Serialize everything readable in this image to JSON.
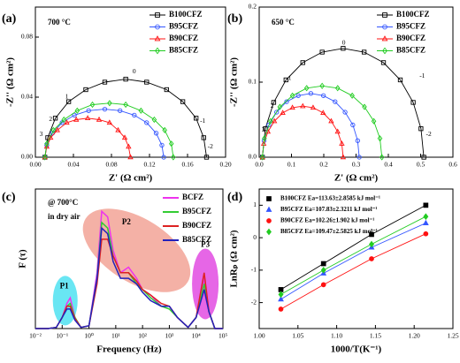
{
  "chart_data": [
    {
      "type": "scatter",
      "panel_label": "(a)",
      "xlabel": "Z' (Ω cm²)",
      "ylabel": "-Z'' (Ω cm²)",
      "marker_fill": "open",
      "connect": true,
      "xlim": [
        0,
        0.2
      ],
      "ylim": [
        0,
        0.1
      ],
      "xticks": [
        {
          "value": 0,
          "label": "0.00"
        },
        {
          "value": 0.04,
          "label": "0.04"
        },
        {
          "value": 0.08,
          "label": "0.08"
        },
        {
          "value": 0.12,
          "label": "0.12"
        },
        {
          "value": 0.16,
          "label": "0.16"
        },
        {
          "value": 0.2,
          "label": "0.20"
        }
      ],
      "yticks": [
        {
          "value": 0,
          "label": "0.00"
        },
        {
          "value": 0.04,
          "label": "0.04"
        },
        {
          "value": 0.08,
          "label": "0.08"
        }
      ],
      "annotations": [
        "700 °C",
        "0",
        "1",
        "2",
        "3",
        "-1",
        "-2"
      ],
      "legend": "upper right",
      "series": [
        {
          "name": "B100CFZ",
          "color": "#000000",
          "marker": "square",
          "x": [
            0.01,
            0.013,
            0.021,
            0.035,
            0.053,
            0.073,
            0.095,
            0.117,
            0.138,
            0.155,
            0.169,
            0.177,
            0.18
          ],
          "values": [
            0,
            0.013,
            0.026,
            0.037,
            0.045,
            0.05,
            0.052,
            0.05,
            0.045,
            0.037,
            0.026,
            0.013,
            0
          ]
        },
        {
          "name": "B95CFZ",
          "color": "#3355ff",
          "marker": "circle",
          "x": [
            0.01,
            0.012,
            0.018,
            0.028,
            0.041,
            0.056,
            0.073,
            0.089,
            0.104,
            0.117,
            0.127,
            0.133,
            0.135
          ],
          "values": [
            0,
            0.008,
            0.016,
            0.023,
            0.028,
            0.031,
            0.032,
            0.031,
            0.028,
            0.023,
            0.016,
            0.008,
            0
          ]
        },
        {
          "name": "B90CFZ",
          "color": "#ff1111",
          "marker": "triangle",
          "x": [
            0.01,
            0.012,
            0.016,
            0.023,
            0.033,
            0.043,
            0.055,
            0.067,
            0.078,
            0.087,
            0.094,
            0.098,
            0.1
          ],
          "values": [
            0,
            0.007,
            0.013,
            0.018,
            0.023,
            0.025,
            0.026,
            0.025,
            0.023,
            0.018,
            0.013,
            0.007,
            0
          ]
        },
        {
          "name": "B85CFZ",
          "color": "#22cc22",
          "marker": "diamond",
          "x": [
            0.01,
            0.012,
            0.019,
            0.03,
            0.044,
            0.06,
            0.078,
            0.095,
            0.111,
            0.125,
            0.136,
            0.143,
            0.145
          ],
          "values": [
            0,
            0.009,
            0.018,
            0.025,
            0.031,
            0.035,
            0.036,
            0.035,
            0.031,
            0.025,
            0.018,
            0.009,
            0
          ]
        }
      ]
    },
    {
      "type": "scatter",
      "panel_label": "(b)",
      "xlabel": "Z' (Ω cm²)",
      "ylabel": "-Z'' (Ω cm²)",
      "marker_fill": "open",
      "connect": true,
      "xlim": [
        0,
        0.6
      ],
      "ylim": [
        0,
        0.2
      ],
      "xticks": [
        {
          "value": 0,
          "label": "0.0"
        },
        {
          "value": 0.1,
          "label": "0.1"
        },
        {
          "value": 0.2,
          "label": "0.2"
        },
        {
          "value": 0.3,
          "label": "0.3"
        },
        {
          "value": 0.4,
          "label": "0.4"
        },
        {
          "value": 0.5,
          "label": "0.5"
        },
        {
          "value": 0.6,
          "label": "0.6"
        }
      ],
      "yticks": [
        {
          "value": 0,
          "label": "0.0"
        },
        {
          "value": 0.1,
          "label": "0.1"
        },
        {
          "value": 0.2,
          "label": "0.2"
        }
      ],
      "annotations": [
        "650 °C",
        "0",
        "1",
        "2",
        "3",
        "-1",
        "-2"
      ],
      "legend": "upper right",
      "series": [
        {
          "name": "B100CFZ",
          "color": "#000000",
          "marker": "square",
          "x": [
            0.01,
            0.019,
            0.045,
            0.083,
            0.135,
            0.195,
            0.26,
            0.325,
            0.385,
            0.437,
            0.477,
            0.501,
            0.51
          ],
          "values": [
            0,
            0.038,
            0.073,
            0.103,
            0.126,
            0.14,
            0.145,
            0.14,
            0.126,
            0.103,
            0.073,
            0.038,
            0
          ]
        },
        {
          "name": "B95CFZ",
          "color": "#3355ff",
          "marker": "circle",
          "x": [
            0.01,
            0.015,
            0.03,
            0.054,
            0.085,
            0.121,
            0.16,
            0.199,
            0.235,
            0.266,
            0.29,
            0.305,
            0.31
          ],
          "values": [
            0,
            0.022,
            0.043,
            0.06,
            0.074,
            0.082,
            0.085,
            0.082,
            0.074,
            0.06,
            0.043,
            0.022,
            0
          ]
        },
        {
          "name": "B90CFZ",
          "color": "#ff1111",
          "marker": "triangle",
          "x": [
            0.01,
            0.014,
            0.027,
            0.047,
            0.073,
            0.103,
            0.135,
            0.167,
            0.198,
            0.223,
            0.243,
            0.256,
            0.26
          ],
          "values": [
            0,
            0.018,
            0.034,
            0.048,
            0.059,
            0.066,
            0.068,
            0.066,
            0.059,
            0.048,
            0.034,
            0.018,
            0
          ]
        },
        {
          "name": "B85CFZ",
          "color": "#22cc22",
          "marker": "diamond",
          "x": [
            0.01,
            0.016,
            0.035,
            0.064,
            0.103,
            0.147,
            0.195,
            0.243,
            0.288,
            0.326,
            0.355,
            0.374,
            0.38
          ],
          "values": [
            0,
            0.025,
            0.048,
            0.067,
            0.082,
            0.092,
            0.095,
            0.092,
            0.082,
            0.067,
            0.048,
            0.025,
            0
          ]
        }
      ]
    },
    {
      "type": "line",
      "panel_label": "(c)",
      "xlabel": "Frequency (Hz)",
      "ylabel": "F (τ)",
      "xscale": "log",
      "xlim": [
        0.01,
        100000
      ],
      "ylim": [
        0,
        0.25
      ],
      "xticks": [
        {
          "value": 0.01,
          "label": "10⁻²"
        },
        {
          "value": 0.1,
          "label": "10⁻¹"
        },
        {
          "value": 1,
          "label": "10⁰"
        },
        {
          "value": 10,
          "label": "10¹"
        },
        {
          "value": 100,
          "label": "10²"
        },
        {
          "value": 1000,
          "label": "10³"
        },
        {
          "value": 10000,
          "label": "10⁴"
        },
        {
          "value": 100000,
          "label": "10⁵"
        }
      ],
      "annotations": [
        "@ 700°C",
        "in dry air",
        "P1",
        "P2",
        "P3"
      ],
      "legend": "upper right",
      "x": [
        0.01,
        0.03,
        0.06,
        0.1,
        0.15,
        0.2,
        0.3,
        0.5,
        1,
        2,
        3,
        5,
        8,
        15,
        30,
        60,
        100,
        200,
        500,
        1000,
        2000,
        5000,
        10000,
        20000,
        30000,
        50000,
        100000
      ],
      "series": [
        {
          "name": "BCFZ",
          "color": "#ee33ee",
          "values": [
            0,
            0,
            0.002,
            0.02,
            0.045,
            0.055,
            0.02,
            0.002,
            0.005,
            0.1,
            0.21,
            0.2,
            0.14,
            0.1,
            0.11,
            0.09,
            0.07,
            0.06,
            0.04,
            0.04,
            0.02,
            0.002,
            0.02,
            0.09,
            0.03,
            0,
            0
          ]
        },
        {
          "name": "B95CFZ",
          "color": "#33cc33",
          "values": [
            0,
            0,
            0.002,
            0.02,
            0.04,
            0.045,
            0.02,
            0.002,
            0.005,
            0.09,
            0.19,
            0.18,
            0.13,
            0.1,
            0.1,
            0.08,
            0.07,
            0.055,
            0.04,
            0.035,
            0.02,
            0.002,
            0.02,
            0.08,
            0.03,
            0,
            0
          ]
        },
        {
          "name": "B90CFZ",
          "color": "#dd2222",
          "values": [
            0,
            0,
            0.002,
            0.02,
            0.04,
            0.04,
            0.018,
            0.002,
            0.005,
            0.08,
            0.16,
            0.16,
            0.13,
            0.1,
            0.1,
            0.085,
            0.07,
            0.06,
            0.045,
            0.04,
            0.02,
            0.002,
            0.02,
            0.1,
            0.03,
            0,
            0
          ]
        },
        {
          "name": "B85CFZ",
          "color": "#2222bb",
          "values": [
            0,
            0,
            0.002,
            0.02,
            0.035,
            0.035,
            0.015,
            0.002,
            0.005,
            0.09,
            0.18,
            0.17,
            0.12,
            0.09,
            0.09,
            0.08,
            0.065,
            0.05,
            0.04,
            0.04,
            0.02,
            0.002,
            0.02,
            0.07,
            0.03,
            0,
            0
          ]
        }
      ]
    },
    {
      "type": "scatter",
      "panel_label": "(d)",
      "xlabel": "1000/T(K⁻¹)",
      "ylabel": "LnRₚ (Ω cm²)",
      "marker_fill": "filled",
      "connect": true,
      "xlim": [
        1.0,
        1.25
      ],
      "ylim": [
        -2.8,
        1.5
      ],
      "xticks": [
        {
          "value": 1.0,
          "label": "1.00"
        },
        {
          "value": 1.05,
          "label": "1.05"
        },
        {
          "value": 1.1,
          "label": "1.10"
        },
        {
          "value": 1.15,
          "label": "1.15"
        },
        {
          "value": 1.2,
          "label": "1.20"
        },
        {
          "value": 1.25,
          "label": "1.25"
        }
      ],
      "yticks": [
        -2,
        -1,
        0,
        1
      ],
      "legend": "upper left",
      "x": [
        1.028,
        1.083,
        1.145,
        1.215
      ],
      "series": [
        {
          "name": "B100CFZ Ea=113.63±2.8585 kJ mol⁻¹",
          "color": "#000000",
          "marker": "square",
          "values": [
            -1.6,
            -0.8,
            0.1,
            1.0
          ]
        },
        {
          "name": "B95CFZ Ea=107.83±2.3211 kJ mol⁻¹",
          "color": "#3355ff",
          "marker": "triangle",
          "values": [
            -1.9,
            -1.1,
            -0.3,
            0.45
          ]
        },
        {
          "name": "B90CFZ Ea=102.26±1.902 kJ mol⁻¹",
          "color": "#ff1111",
          "marker": "circle",
          "values": [
            -2.2,
            -1.45,
            -0.65,
            0.12
          ]
        },
        {
          "name": "B85CFZ Ea=109.47±2.5825 kJ mol⁻¹",
          "color": "#22cc22",
          "marker": "diamond",
          "values": [
            -1.75,
            -1.0,
            -0.2,
            0.65
          ]
        }
      ]
    }
  ]
}
